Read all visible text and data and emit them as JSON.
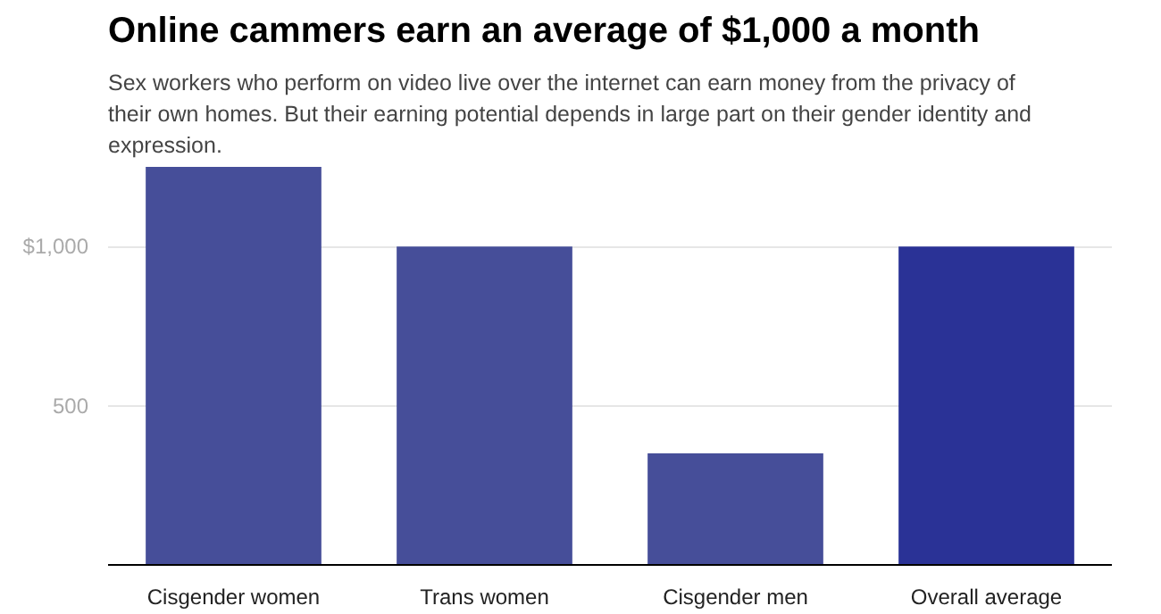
{
  "chart_data": {
    "type": "bar",
    "title": "Online cammers earn an average of $1,000 a month",
    "subtitle": "Sex workers who perform on video live over the internet can earn money from the privacy of their own homes. But their earning potential depends in large part on their gender identity and expression.",
    "categories": [
      "Cisgender women",
      "Trans women",
      "Cisgender men",
      "Overall average"
    ],
    "values": [
      1250,
      1000,
      350,
      1000
    ],
    "colors": [
      "#464e99",
      "#464e99",
      "#464e99",
      "#2a3296"
    ],
    "ylim": [
      0,
      1250
    ],
    "yticks": [
      {
        "value": 500,
        "label": "500"
      },
      {
        "value": 1000,
        "label": "$1,000"
      }
    ],
    "grid": "y"
  }
}
